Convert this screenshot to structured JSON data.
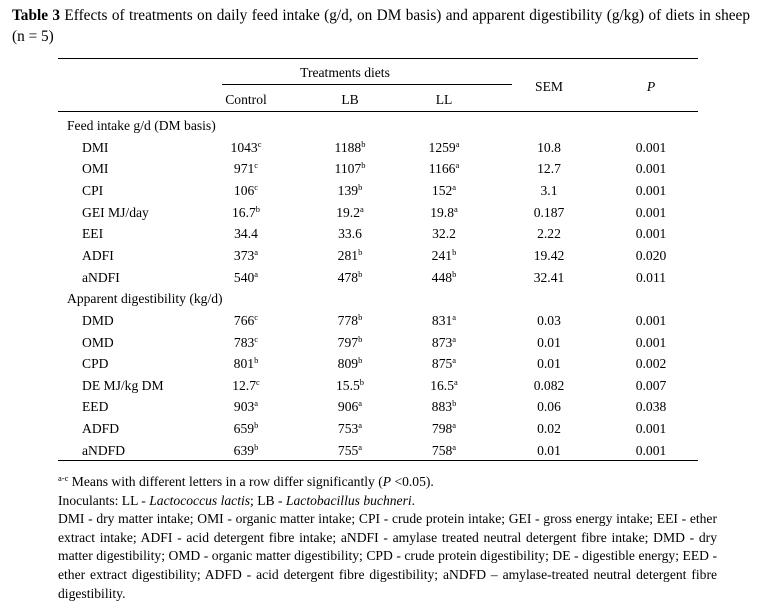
{
  "caption": {
    "label": "Table 3",
    "text": "Effects of treatments on daily feed intake (g/d, on DM basis) and apparent digestibility (g/kg) of diets in sheep (n = 5)"
  },
  "table": {
    "group_header": "Treatments diets",
    "columns": [
      "Control",
      "LB",
      "LL"
    ],
    "sem_header": "SEM",
    "p_header": "P",
    "sections": [
      {
        "title": "Feed intake g/d (DM basis)",
        "rows": [
          {
            "label": "DMI",
            "vals": [
              [
                "1043",
                "c"
              ],
              [
                "1188",
                "b"
              ],
              [
                "1259",
                "a"
              ]
            ],
            "sem": "10.8",
            "p": "0.001"
          },
          {
            "label": "OMI",
            "vals": [
              [
                "971",
                "c"
              ],
              [
                "1107",
                "b"
              ],
              [
                "1166",
                "a"
              ]
            ],
            "sem": "12.7",
            "p": "0.001"
          },
          {
            "label": "CPI",
            "vals": [
              [
                "106",
                "c"
              ],
              [
                "139",
                "b"
              ],
              [
                "152",
                "a"
              ]
            ],
            "sem": "3.1",
            "p": "0.001"
          },
          {
            "label": "GEI MJ/day",
            "vals": [
              [
                "16.7",
                "b"
              ],
              [
                "19.2",
                "a"
              ],
              [
                "19.8",
                "a"
              ]
            ],
            "sem": "0.187",
            "p": "0.001"
          },
          {
            "label": "EEI",
            "vals": [
              [
                "34.4",
                ""
              ],
              [
                "33.6",
                ""
              ],
              [
                "32.2",
                ""
              ]
            ],
            "sem": "2.22",
            "p": "0.001"
          },
          {
            "label": "ADFI",
            "vals": [
              [
                "373",
                "a"
              ],
              [
                "281",
                "b"
              ],
              [
                "241",
                "b"
              ]
            ],
            "sem": "19.42",
            "p": "0.020"
          },
          {
            "label": "aNDFI",
            "vals": [
              [
                "540",
                "a"
              ],
              [
                "478",
                "b"
              ],
              [
                "448",
                "b"
              ]
            ],
            "sem": "32.41",
            "p": "0.011"
          }
        ]
      },
      {
        "title": "Apparent digestibility (kg/d)",
        "rows": [
          {
            "label": "DMD",
            "vals": [
              [
                "766",
                "c"
              ],
              [
                "778",
                "b"
              ],
              [
                "831",
                "a"
              ]
            ],
            "sem": "0.03",
            "p": "0.001"
          },
          {
            "label": "OMD",
            "vals": [
              [
                "783",
                "c"
              ],
              [
                "797",
                "b"
              ],
              [
                "873",
                "a"
              ]
            ],
            "sem": "0.01",
            "p": "0.001"
          },
          {
            "label": "CPD",
            "vals": [
              [
                "801",
                "b"
              ],
              [
                "809",
                "b"
              ],
              [
                "875",
                "a"
              ]
            ],
            "sem": "0.01",
            "p": "0.002"
          },
          {
            "label": "DE MJ/kg DM",
            "vals": [
              [
                "12.7",
                "c"
              ],
              [
                "15.5",
                "b"
              ],
              [
                "16.5",
                "a"
              ]
            ],
            "sem": "0.082",
            "p": "0.007"
          },
          {
            "label": "EED",
            "vals": [
              [
                "903",
                "a"
              ],
              [
                "906",
                "a"
              ],
              [
                "883",
                "b"
              ]
            ],
            "sem": "0.06",
            "p": "0.038"
          },
          {
            "label": "ADFD",
            "vals": [
              [
                "659",
                "b"
              ],
              [
                "753",
                "a"
              ],
              [
                "798",
                "a"
              ]
            ],
            "sem": "0.02",
            "p": "0.001"
          },
          {
            "label": "aNDFD",
            "vals": [
              [
                "639",
                "b"
              ],
              [
                "755",
                "a"
              ],
              [
                "758",
                "a"
              ]
            ],
            "sem": "0.01",
            "p": "0.001"
          }
        ]
      }
    ]
  },
  "notes": {
    "sup_range": "a-c",
    "line1_text": "Means with different letters in a row differ significantly (",
    "line1_p": "P",
    "line1_end": " <0.05).",
    "inoculants_prefix": "Inoculants: LL - ",
    "ll_name": "Lactococcus lactis",
    "lb_sep": "; LB - ",
    "lb_name": "Lactobacillus buchneri",
    "lb_end": ".",
    "abbreviations": "DMI - dry matter intake; OMI - organic matter intake; CPI - crude protein intake; GEI - gross energy intake; EEI - ether extract intake; ADFI - acid detergent fibre intake; aNDFI - amylase treated neutral detergent fibre intake; DMD - dry matter digestibility; OMD - organic matter digestibility; CPD - crude protein digestibility; DE - digestible energy; EED - ether extract digestibility; ADFD - acid detergent fibre digestibility; aNDFD – amylase-treated neutral detergent fibre digestibility."
  }
}
